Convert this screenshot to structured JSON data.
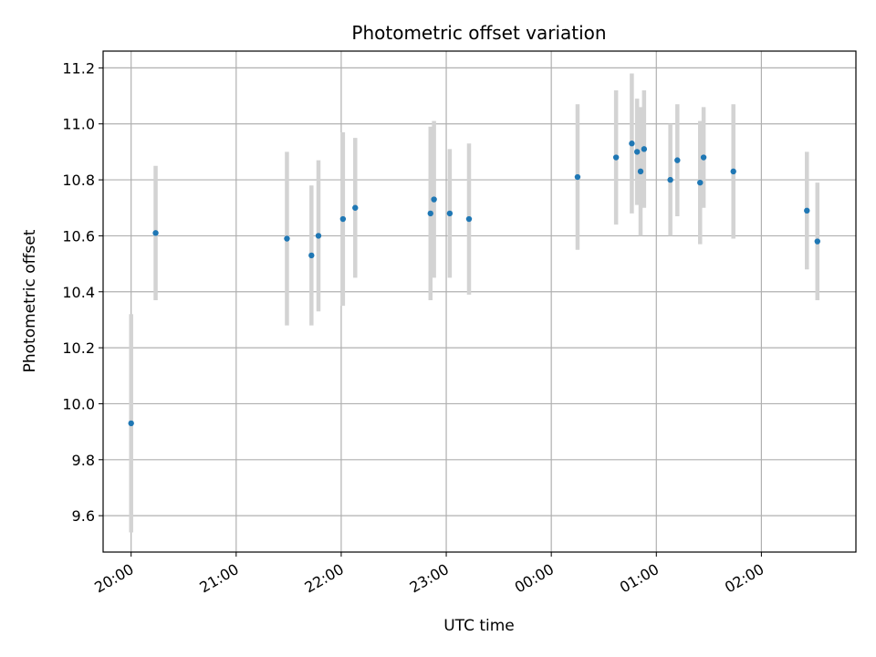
{
  "chart_data": {
    "type": "scatter",
    "title": "Photometric offset variation",
    "xlabel": "UTC time",
    "ylabel": "Photometric offset",
    "x_axis_kind": "time",
    "xlim": [
      "19:44",
      "02:54"
    ],
    "ylim": [
      9.47,
      11.26
    ],
    "grid": true,
    "x_ticks": [
      "20:00",
      "21:00",
      "22:00",
      "23:00",
      "00:00",
      "01:00",
      "02:00"
    ],
    "y_ticks": [
      "9.6",
      "9.8",
      "10.0",
      "10.2",
      "10.4",
      "10.6",
      "10.8",
      "11.0",
      "11.2"
    ],
    "colors": {
      "point": "#1f77b4",
      "errorbar": "#d3d3d3",
      "grid": "#b0b0b0"
    },
    "series": [
      {
        "points": [
          {
            "t": "20:00",
            "y": 9.93,
            "err": 0.39
          },
          {
            "t": "20:14",
            "y": 10.61,
            "err": 0.24
          },
          {
            "t": "21:29",
            "y": 10.59,
            "err": 0.31
          },
          {
            "t": "21:43",
            "y": 10.53,
            "err": 0.25
          },
          {
            "t": "21:47",
            "y": 10.6,
            "err": 0.27
          },
          {
            "t": "22:01",
            "y": 10.66,
            "err": 0.31
          },
          {
            "t": "22:08",
            "y": 10.7,
            "err": 0.25
          },
          {
            "t": "22:51",
            "y": 10.68,
            "err": 0.31
          },
          {
            "t": "22:53",
            "y": 10.73,
            "err": 0.28
          },
          {
            "t": "23:02",
            "y": 10.68,
            "err": 0.23
          },
          {
            "t": "23:13",
            "y": 10.66,
            "err": 0.27
          },
          {
            "t": "00:15",
            "y": 10.81,
            "err": 0.26
          },
          {
            "t": "00:37",
            "y": 10.88,
            "err": 0.24
          },
          {
            "t": "00:46",
            "y": 10.93,
            "err": 0.25
          },
          {
            "t": "00:49",
            "y": 10.9,
            "err": 0.19
          },
          {
            "t": "00:51",
            "y": 10.83,
            "err": 0.23
          },
          {
            "t": "00:53",
            "y": 10.91,
            "err": 0.21
          },
          {
            "t": "01:08",
            "y": 10.8,
            "err": 0.2
          },
          {
            "t": "01:12",
            "y": 10.87,
            "err": 0.2
          },
          {
            "t": "01:25",
            "y": 10.79,
            "err": 0.22
          },
          {
            "t": "01:27",
            "y": 10.88,
            "err": 0.18
          },
          {
            "t": "01:44",
            "y": 10.83,
            "err": 0.24
          },
          {
            "t": "02:26",
            "y": 10.69,
            "err": 0.21
          },
          {
            "t": "02:32",
            "y": 10.58,
            "err": 0.21
          }
        ]
      }
    ]
  }
}
